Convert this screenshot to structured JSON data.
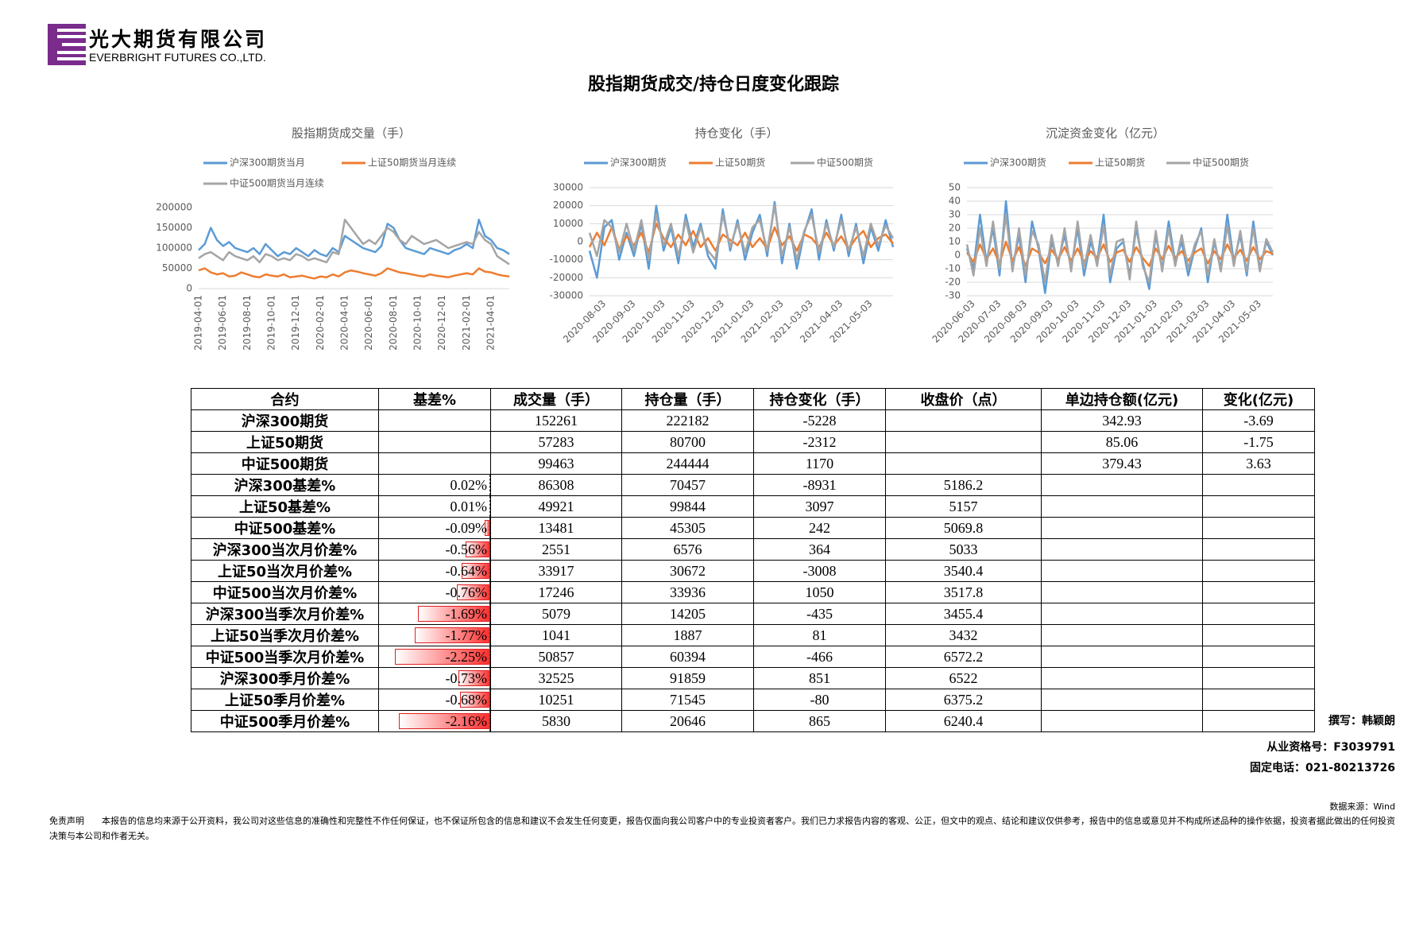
{
  "header": {
    "company_cn": "光大期货有限公司",
    "company_en": "EVERBRIGHT FUTURES CO.,LTD.",
    "title": "股指期货成交/持仓日度变化跟踪"
  },
  "chart_data": [
    {
      "type": "line",
      "title": "股指期货成交量（手）",
      "categories": [
        "2019-04-01",
        null,
        null,
        null,
        "2019-06-01",
        null,
        null,
        null,
        "2019-08-01",
        null,
        null,
        null,
        "2019-10-01",
        null,
        null,
        null,
        "2019-12-01",
        null,
        null,
        null,
        "2020-02-01",
        null,
        null,
        null,
        "2020-04-01",
        null,
        null,
        null,
        "2020-06-01",
        null,
        null,
        null,
        "2020-08-01",
        null,
        null,
        null,
        "2020-10-01",
        null,
        null,
        null,
        "2020-12-01",
        null,
        null,
        null,
        "2021-02-01",
        null,
        null,
        null,
        "2021-04-01",
        null,
        null,
        null
      ],
      "series": [
        {
          "name": "沪深300期货当月",
          "color": "#5b9bd5",
          "values": [
            95000,
            110000,
            150000,
            120000,
            105000,
            115000,
            100000,
            95000,
            90000,
            100000,
            85000,
            110000,
            95000,
            80000,
            90000,
            85000,
            100000,
            90000,
            80000,
            95000,
            85000,
            80000,
            100000,
            90000,
            130000,
            120000,
            110000,
            100000,
            95000,
            90000,
            105000,
            160000,
            150000,
            120000,
            100000,
            95000,
            90000,
            85000,
            100000,
            95000,
            90000,
            85000,
            95000,
            100000,
            110000,
            100000,
            170000,
            130000,
            120000,
            100000,
            95000,
            85000
          ]
        },
        {
          "name": "上证50期货当月连续",
          "color": "#ed7d31",
          "values": [
            45000,
            50000,
            40000,
            35000,
            38000,
            30000,
            32000,
            40000,
            35000,
            30000,
            28000,
            35000,
            32000,
            30000,
            35000,
            28000,
            30000,
            32000,
            28000,
            25000,
            30000,
            28000,
            35000,
            30000,
            40000,
            45000,
            42000,
            38000,
            35000,
            32000,
            38000,
            50000,
            45000,
            40000,
            38000,
            35000,
            32000,
            30000,
            35000,
            32000,
            30000,
            28000,
            32000,
            35000,
            38000,
            35000,
            50000,
            42000,
            40000,
            35000,
            32000,
            30000
          ]
        },
        {
          "name": "中证500期货当月连续",
          "color": "#a5a5a5",
          "values": [
            75000,
            85000,
            90000,
            80000,
            70000,
            90000,
            80000,
            75000,
            70000,
            80000,
            65000,
            85000,
            80000,
            70000,
            75000,
            70000,
            85000,
            80000,
            70000,
            75000,
            70000,
            65000,
            90000,
            85000,
            170000,
            150000,
            130000,
            110000,
            120000,
            110000,
            130000,
            150000,
            140000,
            120000,
            110000,
            130000,
            120000,
            110000,
            115000,
            120000,
            110000,
            100000,
            105000,
            110000,
            115000,
            110000,
            140000,
            120000,
            110000,
            80000,
            70000,
            60000
          ]
        }
      ],
      "ylim": [
        0,
        200000
      ],
      "yticks": [
        0,
        50000,
        100000,
        150000,
        200000
      ],
      "grid": false
    },
    {
      "type": "line",
      "title": "持仓变化（手）",
      "categories": [
        null,
        null,
        "2020-08-03",
        null,
        null,
        null,
        "2020-09-03",
        null,
        null,
        null,
        "2020-10-03",
        null,
        null,
        null,
        "2020-11-03",
        null,
        null,
        null,
        "2020-12-03",
        null,
        null,
        null,
        "2021-01-03",
        null,
        null,
        null,
        "2021-02-03",
        null,
        null,
        null,
        "2021-03-03",
        null,
        null,
        null,
        "2021-04-03",
        null,
        null,
        null,
        "2021-05-03",
        null,
        null,
        null
      ],
      "series": [
        {
          "name": "沪深300期货",
          "color": "#5b9bd5",
          "values": [
            -5000,
            -20000,
            8000,
            12000,
            -10000,
            5000,
            -8000,
            10000,
            -15000,
            20000,
            -5000,
            8000,
            -12000,
            15000,
            -3000,
            10000,
            -8000,
            -15000,
            18000,
            -5000,
            12000,
            -10000,
            5000,
            15000,
            -8000,
            22000,
            -12000,
            10000,
            -15000,
            5000,
            18000,
            -10000,
            12000,
            -5000,
            15000,
            -8000,
            10000,
            -12000,
            8000,
            -5000,
            12000,
            -3000
          ]
        },
        {
          "name": "上证50期货",
          "color": "#ed7d31",
          "values": [
            -3000,
            5000,
            -2000,
            8000,
            -4000,
            3000,
            -2000,
            5000,
            -6000,
            10000,
            2000,
            -3000,
            4000,
            -2000,
            6000,
            -3000,
            2000,
            -5000,
            4000,
            1000,
            -2000,
            5000,
            -3000,
            2000,
            -4000,
            8000,
            -2000,
            3000,
            -5000,
            4000,
            2000,
            -3000,
            5000,
            -2000,
            3000,
            -4000,
            2000,
            6000,
            -3000,
            2000,
            4000,
            -1000
          ]
        },
        {
          "name": "中证500期货",
          "color": "#a5a5a5",
          "values": [
            5000,
            -8000,
            12000,
            8000,
            -6000,
            10000,
            -5000,
            12000,
            -10000,
            15000,
            -2000,
            10000,
            -8000,
            12000,
            -6000,
            8000,
            -5000,
            -10000,
            15000,
            -3000,
            10000,
            -6000,
            8000,
            12000,
            -5000,
            20000,
            -8000,
            8000,
            -10000,
            6000,
            15000,
            -6000,
            10000,
            -3000,
            12000,
            -5000,
            8000,
            -8000,
            10000,
            -2000,
            9000,
            2000
          ]
        }
      ],
      "ylim": [
        -30000,
        30000
      ],
      "yticks": [
        -30000,
        -20000,
        -10000,
        0,
        10000,
        20000,
        30000
      ],
      "grid": true
    },
    {
      "type": "line",
      "title": "沉淀资金变化（亿元）",
      "categories": [
        null,
        "2020-06-03",
        null,
        null,
        null,
        "2020-07-03",
        null,
        null,
        null,
        "2020-08-03",
        null,
        null,
        null,
        "2020-09-03",
        null,
        null,
        null,
        "2020-10-03",
        null,
        null,
        null,
        "2020-11-03",
        null,
        null,
        null,
        "2020-12-03",
        null,
        null,
        null,
        "2021-01-03",
        null,
        null,
        null,
        "2021-02-03",
        null,
        null,
        null,
        "2021-03-03",
        null,
        null,
        null,
        "2021-04-03",
        null,
        null,
        null,
        "2021-05-03",
        null,
        null
      ],
      "series": [
        {
          "name": "沪深300期货",
          "color": "#5b9bd5",
          "values": [
            5,
            -10,
            30,
            -5,
            20,
            -15,
            40,
            -10,
            15,
            -20,
            25,
            5,
            -28,
            10,
            -5,
            15,
            -10,
            20,
            -15,
            10,
            -5,
            30,
            -20,
            5,
            10,
            -15,
            20,
            -5,
            -25,
            15,
            -10,
            25,
            -5,
            10,
            -15,
            5,
            20,
            -20,
            10,
            -10,
            30,
            -5,
            15,
            -15,
            25,
            -10,
            10,
            0
          ]
        },
        {
          "name": "上证50期货",
          "color": "#ed7d31",
          "values": [
            2,
            -5,
            8,
            -3,
            5,
            -6,
            10,
            -4,
            6,
            -8,
            5,
            2,
            -6,
            4,
            -3,
            6,
            -4,
            5,
            -5,
            3,
            -2,
            8,
            -5,
            2,
            4,
            -5,
            6,
            -2,
            -8,
            5,
            -3,
            7,
            -2,
            3,
            -4,
            2,
            5,
            -6,
            3,
            -3,
            8,
            -2,
            4,
            -4,
            6,
            -3,
            3,
            1
          ]
        },
        {
          "name": "中证500期货",
          "color": "#a5a5a5",
          "values": [
            8,
            -15,
            20,
            -8,
            25,
            -10,
            30,
            -12,
            20,
            -15,
            18,
            8,
            -20,
            15,
            -8,
            20,
            -12,
            25,
            -10,
            15,
            -8,
            22,
            -15,
            10,
            12,
            -18,
            25,
            -8,
            -20,
            18,
            -12,
            20,
            -8,
            15,
            -10,
            8,
            18,
            -15,
            12,
            -12,
            22,
            -8,
            18,
            -12,
            20,
            -12,
            12,
            2
          ]
        }
      ],
      "ylim": [
        -30,
        50
      ],
      "yticks": [
        -30,
        -20,
        -10,
        0,
        10,
        20,
        30,
        40,
        50
      ],
      "grid": true
    }
  ],
  "table": {
    "header": [
      "合约",
      "基差%",
      "成交量（手）",
      "持仓量（手）",
      "持仓变化（手）",
      "收盘价（点）",
      "单边持仓额(亿元)",
      "变化(亿元)"
    ],
    "rows": [
      [
        "沪深300期货",
        null,
        152261,
        222182,
        -5228,
        null,
        342.93,
        -3.69
      ],
      [
        "上证50期货",
        null,
        57283,
        80700,
        -2312,
        null,
        85.06,
        -1.75
      ],
      [
        "中证500期货",
        null,
        99463,
        244444,
        1170,
        null,
        379.43,
        3.63
      ],
      [
        "沪深300基差%",
        "0.02%",
        86308,
        70457,
        -8931,
        5186.2,
        null,
        null
      ],
      [
        "上证50基差%",
        "0.01%",
        49921,
        99844,
        3097,
        5157,
        null,
        null
      ],
      [
        "中证500基差%",
        "-0.09%",
        13481,
        45305,
        242,
        5069.8,
        null,
        null
      ],
      [
        "沪深300当次月价差%",
        "-0.56%",
        2551,
        6576,
        364,
        5033,
        null,
        null
      ],
      [
        "上证50当次月价差%",
        "-0.64%",
        33917,
        30672,
        -3008,
        3540.4,
        null,
        null
      ],
      [
        "中证500当次月价差%",
        "-0.76%",
        17246,
        33936,
        1050,
        3517.8,
        null,
        null
      ],
      [
        "沪深300当季次月价差%",
        "-1.69%",
        5079,
        14205,
        -435,
        3455.4,
        null,
        null
      ],
      [
        "上证50当季次月价差%",
        "-1.77%",
        1041,
        1887,
        81,
        3432,
        null,
        null
      ],
      [
        "中证500当季次月价差%",
        "-2.25%",
        50857,
        60394,
        -466,
        6572.2,
        null,
        null
      ],
      [
        "沪深300季月价差%",
        "-0.73%",
        32525,
        91859,
        851,
        6522,
        null,
        null
      ],
      [
        "上证50季月价差%",
        "-0.68%",
        10251,
        71545,
        -80,
        6375.2,
        null,
        null
      ],
      [
        "中证500季月价差%",
        "-2.16%",
        5830,
        20646,
        865,
        6240.4,
        null,
        null
      ]
    ]
  },
  "footer": {
    "author": "撰写：韩颖朗",
    "license": "从业资格号：F3039791",
    "phone": "固定电话：021-80213726",
    "source": "数据来源：Wind",
    "disclaimer_label": "免责声明",
    "disclaimer": "本报告的信息均来源于公开资料，我公司对这些信息的准确性和完整性不作任何保证，也不保证所包含的信息和建议不会发生任何变更，报告仅面向我公司客户中的专业投资者客户。我们已力求报告内容的客观、公正，但文中的观点、结论和建议仅供参考，报告中的信息或意见并不构成所述品种的操作依据，投资者据此做出的任何投资决策与本公司和作者无关。"
  }
}
